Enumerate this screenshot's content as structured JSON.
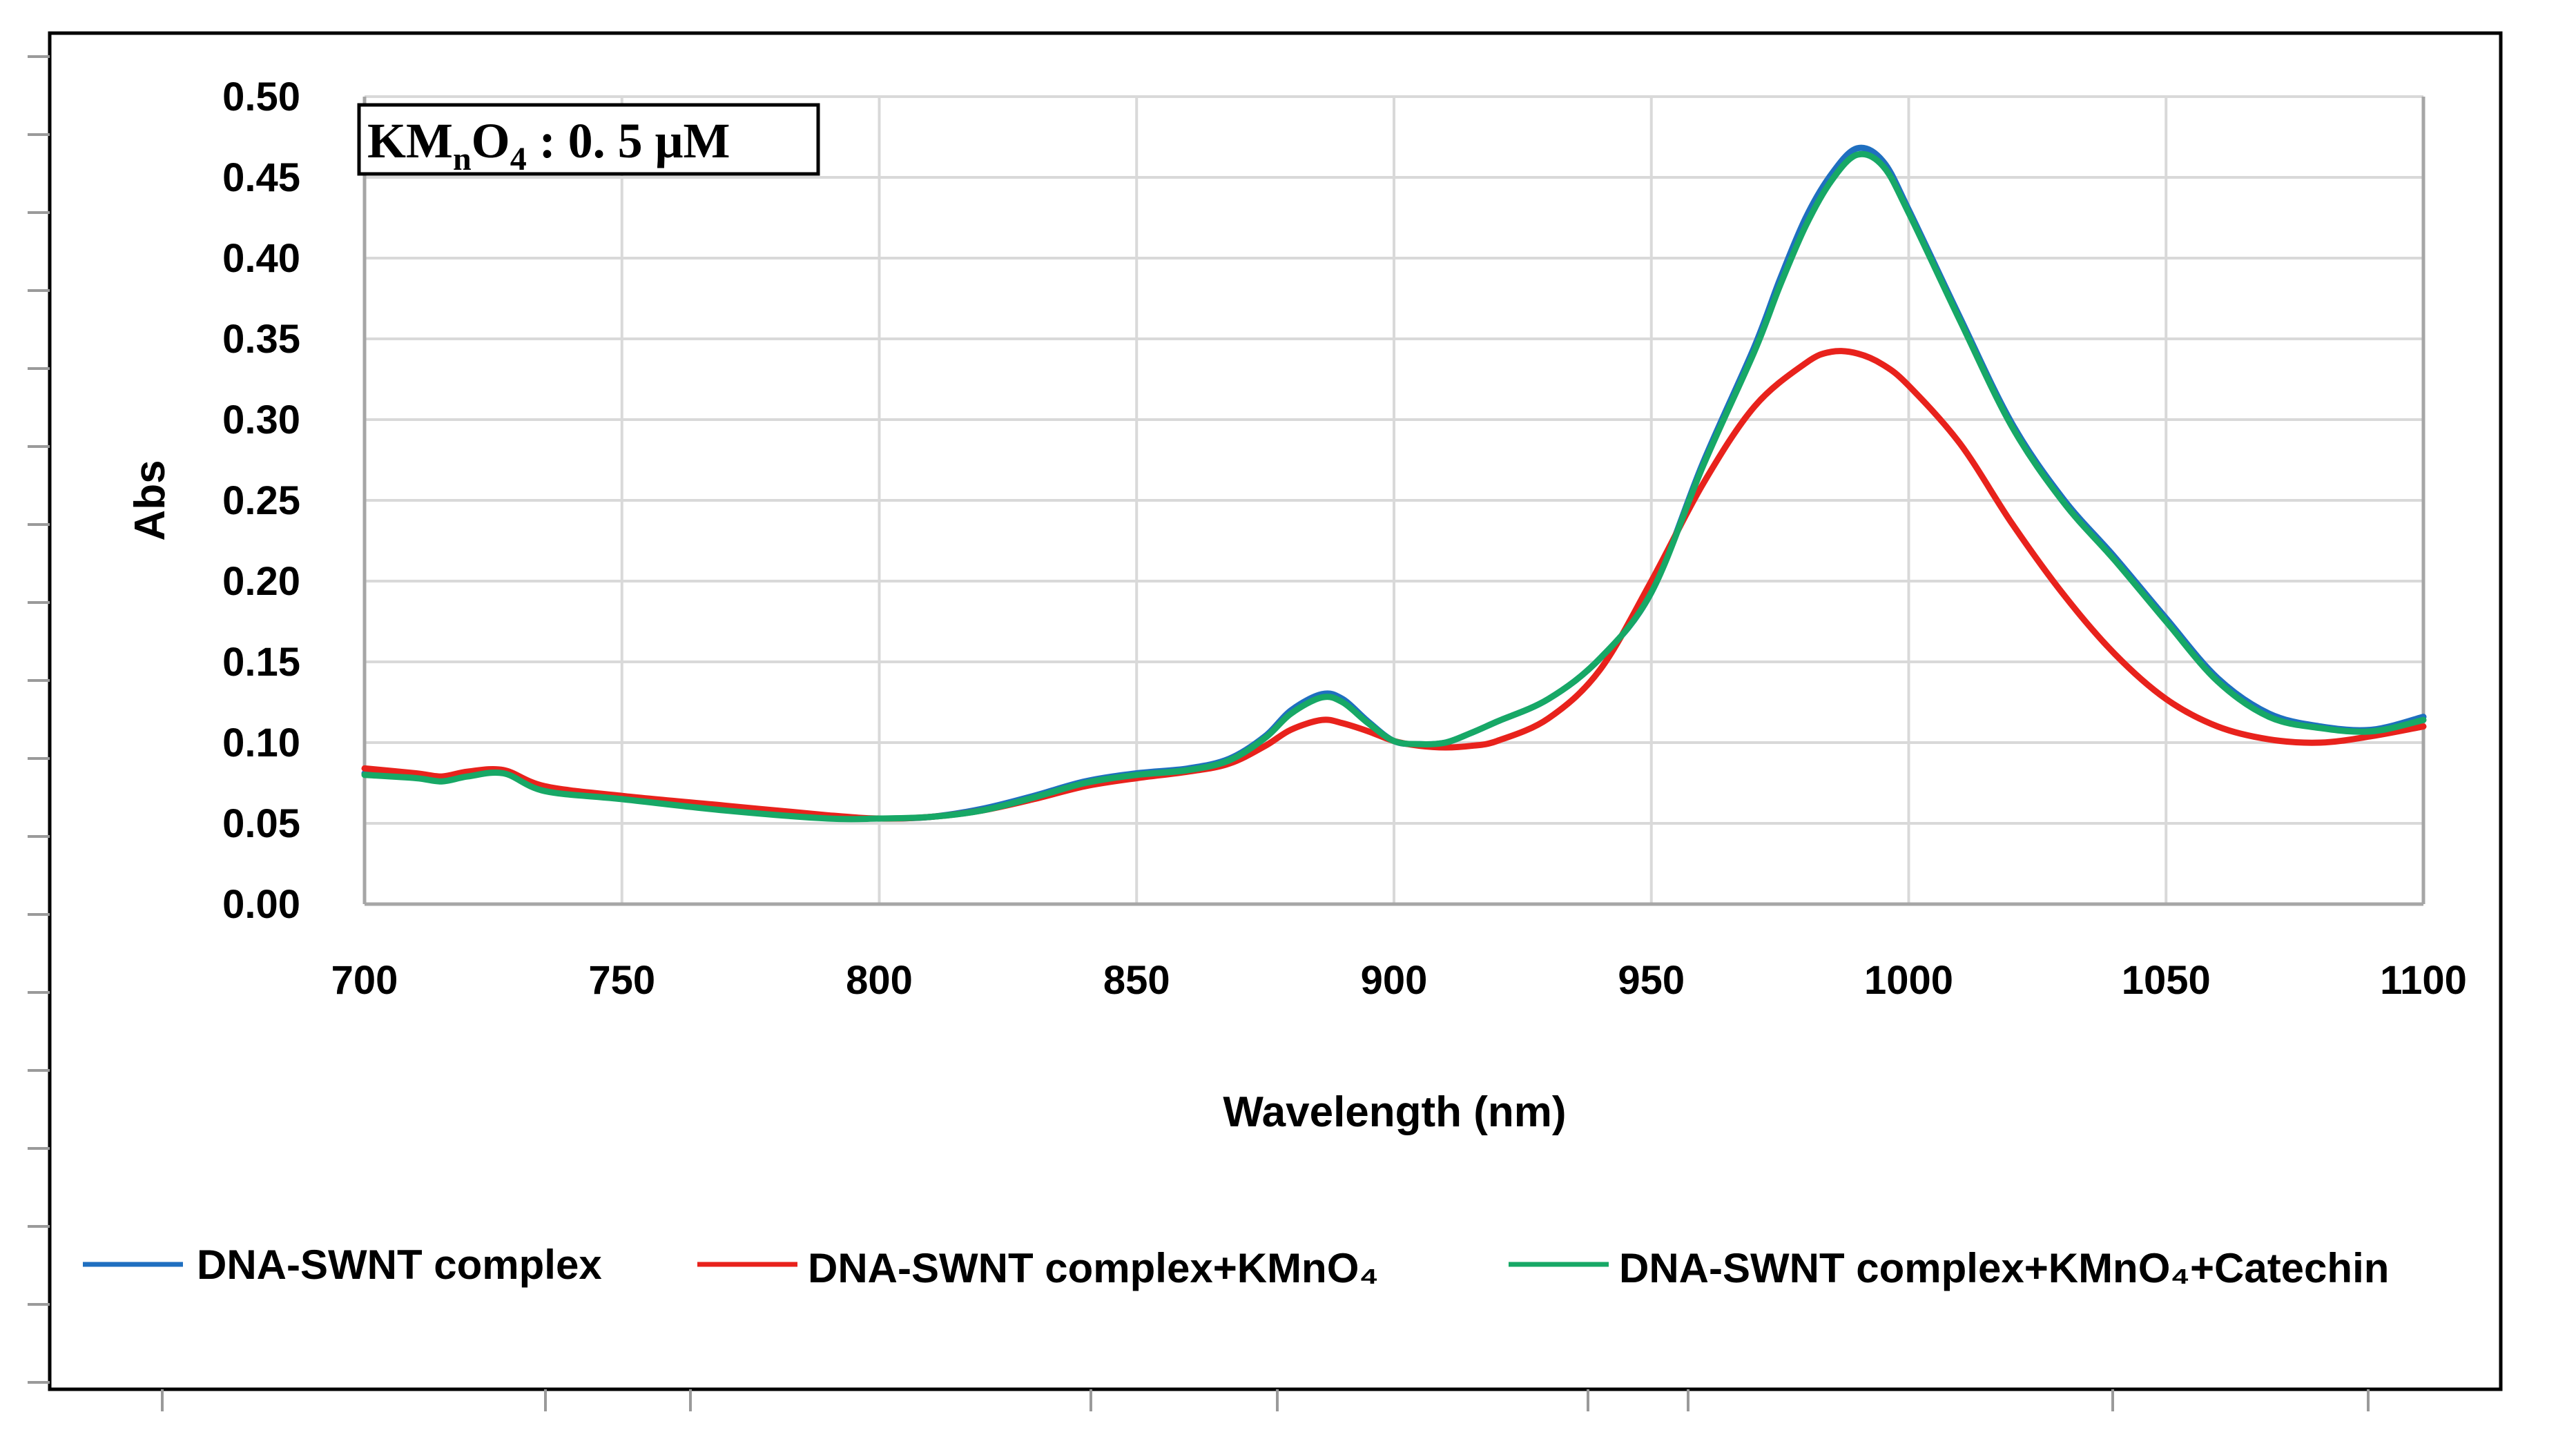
{
  "chart_data": {
    "type": "line",
    "title": "",
    "xlabel": "Wavelength (nm)",
    "ylabel": "Abs",
    "xlim": [
      700,
      1100
    ],
    "ylim": [
      0,
      0.5
    ],
    "xticks": [
      "700",
      "750",
      "800",
      "850",
      "900",
      "950",
      "1000",
      "1050",
      "1100"
    ],
    "yticks": [
      "0.00",
      "0.05",
      "0.10",
      "0.15",
      "0.20",
      "0.25",
      "0.30",
      "0.35",
      "0.40",
      "0.45",
      "0.50"
    ],
    "grid": true,
    "legend_position": "bottom",
    "annotation": {
      "text_main": "KM",
      "text_sub1": "n",
      "text_mid": "O",
      "text_sub2": "4",
      "text_value": " : 0. 5 μM"
    },
    "series": [
      {
        "name": "DNA-SWNT complex",
        "color": "#1f6fc0",
        "x": [
          700,
          710,
          715,
          720,
          727,
          735,
          750,
          770,
          790,
          800,
          810,
          820,
          830,
          840,
          850,
          860,
          868,
          875,
          880,
          886,
          890,
          895,
          900,
          905,
          910,
          915,
          920,
          930,
          940,
          950,
          960,
          970,
          975,
          980,
          985,
          990,
          995,
          1000,
          1010,
          1020,
          1030,
          1040,
          1050,
          1060,
          1070,
          1080,
          1090,
          1100
        ],
        "values": [
          0.081,
          0.079,
          0.077,
          0.08,
          0.082,
          0.071,
          0.066,
          0.059,
          0.054,
          0.053,
          0.054,
          0.059,
          0.067,
          0.076,
          0.081,
          0.084,
          0.09,
          0.104,
          0.12,
          0.13,
          0.127,
          0.113,
          0.101,
          0.099,
          0.1,
          0.106,
          0.113,
          0.127,
          0.152,
          0.193,
          0.273,
          0.345,
          0.387,
          0.425,
          0.452,
          0.468,
          0.46,
          0.43,
          0.363,
          0.298,
          0.251,
          0.215,
          0.177,
          0.14,
          0.118,
          0.11,
          0.108,
          0.116
        ]
      },
      {
        "name": "DNA-SWNT complex+KMnO₄",
        "color": "#e8221c",
        "x": [
          700,
          710,
          715,
          720,
          727,
          735,
          750,
          770,
          790,
          800,
          810,
          820,
          830,
          840,
          850,
          860,
          868,
          875,
          880,
          886,
          890,
          895,
          900,
          905,
          910,
          915,
          920,
          930,
          940,
          950,
          960,
          970,
          980,
          985,
          990,
          995,
          1000,
          1010,
          1020,
          1030,
          1040,
          1050,
          1060,
          1070,
          1080,
          1090,
          1100
        ],
        "values": [
          0.084,
          0.081,
          0.079,
          0.082,
          0.083,
          0.073,
          0.067,
          0.061,
          0.055,
          0.053,
          0.054,
          0.058,
          0.065,
          0.073,
          0.078,
          0.082,
          0.087,
          0.098,
          0.108,
          0.114,
          0.112,
          0.107,
          0.101,
          0.098,
          0.097,
          0.098,
          0.101,
          0.115,
          0.145,
          0.2,
          0.26,
          0.308,
          0.335,
          0.342,
          0.341,
          0.334,
          0.321,
          0.285,
          0.236,
          0.192,
          0.155,
          0.127,
          0.11,
          0.102,
          0.1,
          0.104,
          0.11
        ]
      },
      {
        "name": "DNA-SWNT complex+KMnO₄+Catechin",
        "color": "#17a866",
        "x": [
          700,
          710,
          715,
          720,
          727,
          735,
          750,
          770,
          790,
          800,
          810,
          820,
          830,
          840,
          850,
          860,
          868,
          875,
          880,
          886,
          890,
          895,
          900,
          905,
          910,
          915,
          920,
          930,
          940,
          950,
          960,
          970,
          975,
          980,
          985,
          990,
          995,
          1000,
          1010,
          1020,
          1030,
          1040,
          1050,
          1060,
          1070,
          1080,
          1090,
          1100
        ],
        "values": [
          0.08,
          0.078,
          0.076,
          0.079,
          0.081,
          0.07,
          0.065,
          0.058,
          0.053,
          0.053,
          0.054,
          0.058,
          0.066,
          0.075,
          0.08,
          0.083,
          0.089,
          0.103,
          0.118,
          0.128,
          0.125,
          0.112,
          0.101,
          0.099,
          0.1,
          0.106,
          0.113,
          0.127,
          0.152,
          0.193,
          0.271,
          0.342,
          0.383,
          0.42,
          0.448,
          0.464,
          0.457,
          0.428,
          0.361,
          0.296,
          0.249,
          0.213,
          0.175,
          0.138,
          0.116,
          0.109,
          0.107,
          0.114
        ]
      }
    ]
  }
}
